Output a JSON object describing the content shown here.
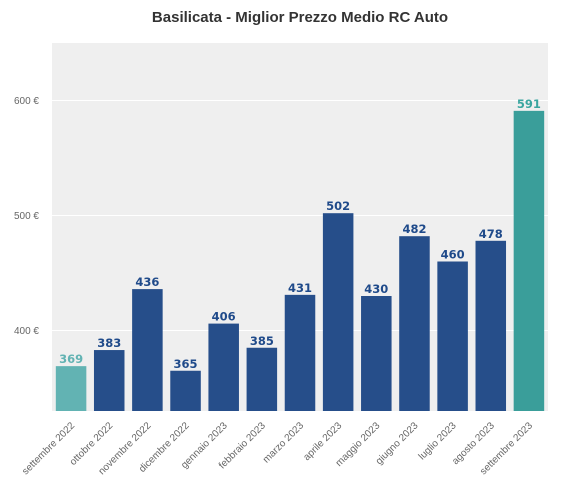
{
  "chart_data": {
    "type": "bar",
    "title": "Basilicata - Miglior Prezzo Medio RC Auto",
    "xlabel": "",
    "ylabel": "",
    "ylim": [
      330,
      650
    ],
    "yticks": [
      400,
      500,
      600
    ],
    "ytick_labels": [
      "400 €",
      "500 €",
      "600 €"
    ],
    "grid": true,
    "categories": [
      "settembre 2022",
      "ottobre 2022",
      "novembre 2022",
      "dicembre 2022",
      "gennaio 2023",
      "febbraio 2023",
      "marzo 2023",
      "aprile 2023",
      "maggio 2023",
      "giugno 2023",
      "luglio 2023",
      "agosto 2023",
      "settembre 2023"
    ],
    "values": [
      369,
      383,
      436,
      365,
      406,
      385,
      431,
      502,
      430,
      482,
      460,
      478,
      591
    ],
    "data_labels": [
      "369",
      "383",
      "436",
      "365",
      "406",
      "385",
      "431",
      "502",
      "430",
      "482",
      "460",
      "478",
      "591"
    ],
    "colors": {
      "first": "#62b3b3",
      "middle": "#264e8a",
      "last": "#3a9e9a",
      "label_first": "#62b3b3",
      "label_middle": "#1f4a8a",
      "label_last": "#3aa6a0",
      "plot_bg": "#efefef",
      "grid": "#ffffff"
    }
  }
}
